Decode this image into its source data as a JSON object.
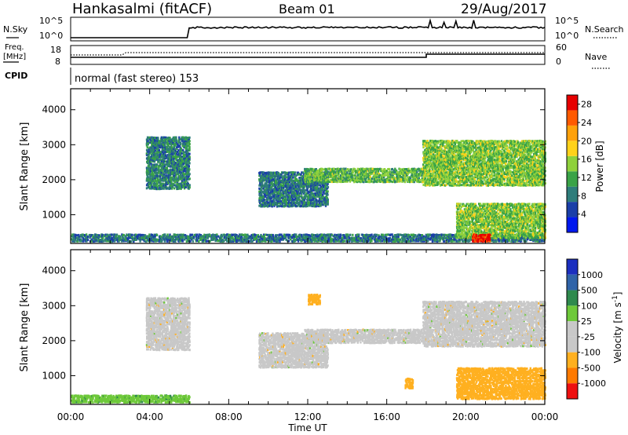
{
  "header": {
    "station": "Hankasalmi (fitACF)",
    "beam": "Beam 01",
    "date": "29/Aug/2017"
  },
  "strip_sky": {
    "left_label": "N.Sky",
    "left_ticks": [
      "10^5",
      "10^0"
    ],
    "right_label": "N.Search",
    "right_ticks": [
      "10^5",
      "10^0"
    ]
  },
  "strip_freq": {
    "left_label_1": "Freq.",
    "left_label_2": "[MHz]",
    "left_ticks": [
      "18",
      "8"
    ],
    "right_label": "Nave",
    "right_ticks": [
      "60",
      "0"
    ]
  },
  "strip_cpid": {
    "label": "CPID",
    "text": "normal (fast stereo) 153"
  },
  "colors": {
    "power_scale": [
      "#0018ee",
      "#1a3fa8",
      "#2e7d7b",
      "#3aa347",
      "#8fd13c",
      "#ffd21a",
      "#ffa10a",
      "#ff5a00",
      "#e60000"
    ],
    "velocity_scale": [
      "#1b2fbf",
      "#2f63a8",
      "#2f8a4e",
      "#6ec93a",
      "#c8c8c8",
      "#c8c8c8",
      "#ffb020",
      "#ff7a00",
      "#ee1010"
    ],
    "ground_scatter": "#c8c8c8"
  },
  "chart_data": [
    {
      "type": "heatmap",
      "title": "",
      "xlabel": "",
      "ylabel": "Slant Range [km]",
      "xlim": [
        "00:00",
        "24:00"
      ],
      "ylim": [
        180,
        4600
      ],
      "yticks": [
        "1000",
        "2000",
        "3000",
        "4000"
      ],
      "colorbar": {
        "label": "Power [dB]",
        "ticks": [
          "4",
          "8",
          "12",
          "16",
          "20",
          "24",
          "28"
        ],
        "range": [
          0,
          30
        ]
      },
      "regions": [
        {
          "name": "near range band",
          "t": [
            0,
            24
          ],
          "r": [
            200,
            420
          ],
          "level": 8
        },
        {
          "name": "early morning arc",
          "t": [
            3.8,
            6.0
          ],
          "r": [
            1700,
            3200
          ],
          "level": 9
        },
        {
          "name": "midday patches",
          "t": [
            9.5,
            13.0
          ],
          "r": [
            1200,
            2200
          ],
          "level": 8
        },
        {
          "name": "afternoon echo band",
          "t": [
            11.8,
            17.8
          ],
          "r": [
            1900,
            2300
          ],
          "level": 13
        },
        {
          "name": "evening echo band",
          "t": [
            17.8,
            24.0
          ],
          "r": [
            1800,
            3100
          ],
          "level": 14
        },
        {
          "name": "night near-range echoes",
          "t": [
            19.5,
            24.0
          ],
          "r": [
            300,
            1300
          ],
          "level": 14
        },
        {
          "name": "strong near-range patch",
          "t": [
            20.3,
            21.2
          ],
          "r": [
            200,
            420
          ],
          "level": 28
        }
      ]
    },
    {
      "type": "heatmap",
      "title": "",
      "xlabel": "Time UT",
      "ylabel": "Slant Range [km]",
      "xlim": [
        "00:00",
        "24:00"
      ],
      "ylim": [
        180,
        4600
      ],
      "xticks": [
        "00:00",
        "04:00",
        "08:00",
        "12:00",
        "16:00",
        "20:00",
        "00:00"
      ],
      "yticks": [
        "1000",
        "2000",
        "3000",
        "4000"
      ],
      "colorbar": {
        "label": "Velocity [m s",
        "label_sup": "-1",
        "ticks": [
          "1000",
          "500",
          "100",
          "25",
          "-25",
          "-100",
          "-500",
          "-1000"
        ],
        "range": [
          -1200,
          1200
        ]
      },
      "regions": [
        {
          "name": "near range green band",
          "t": [
            0,
            6.0
          ],
          "r": [
            200,
            420
          ],
          "value": 80
        },
        {
          "name": "ground scatter morning",
          "t": [
            3.8,
            6.0
          ],
          "r": [
            1700,
            3200
          ],
          "value": 0
        },
        {
          "name": "ground scatter midday",
          "t": [
            9.5,
            13.0
          ],
          "r": [
            1200,
            2200
          ],
          "value": 0
        },
        {
          "name": "ground scatter afternoon",
          "t": [
            11.8,
            17.8
          ],
          "r": [
            1900,
            2300
          ],
          "value": 0
        },
        {
          "name": "ground scatter evening",
          "t": [
            17.8,
            24.0
          ],
          "r": [
            1800,
            3100
          ],
          "value": 0
        },
        {
          "name": "orange patch 12h",
          "t": [
            12.0,
            12.6
          ],
          "r": [
            3000,
            3300
          ],
          "value": -300
        },
        {
          "name": "orange patch 17h",
          "t": [
            16.9,
            17.3
          ],
          "r": [
            600,
            900
          ],
          "value": -300
        },
        {
          "name": "evening mixed near range",
          "t": [
            19.5,
            24.0
          ],
          "r": [
            300,
            1200
          ],
          "value": -150
        }
      ]
    }
  ],
  "strips_data": {
    "nsky_level": 3,
    "nsky_step_time": 6.0,
    "freq_level": 10.5,
    "freq_step_up_time": 18.0,
    "nave_level": 24
  }
}
